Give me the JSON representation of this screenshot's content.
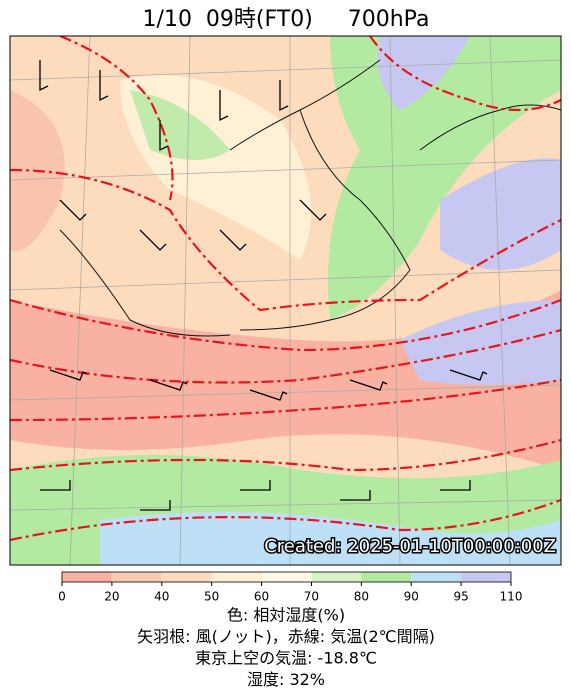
{
  "title": "1/10  09時(FT0)     700hPa",
  "stamp": "Created: 2025-01-10T00:00:00Z",
  "colorbar": {
    "ticks": [
      0,
      20,
      40,
      50,
      60,
      70,
      80,
      90,
      95,
      110
    ],
    "colors": [
      "#f9b2a2",
      "#fccaae",
      "#fddcbe",
      "#fff0d6",
      "#fdf9e6",
      "#d6f4c6",
      "#b2eaa2",
      "#bde0f7",
      "#c6c8f1"
    ]
  },
  "caption": [
    "色: 相対湿度(%)",
    "矢羽根: 風(ノット)，赤線: 気温(2℃間隔)",
    "東京上空の気温: -18.8℃",
    "湿度: 32%"
  ]
}
